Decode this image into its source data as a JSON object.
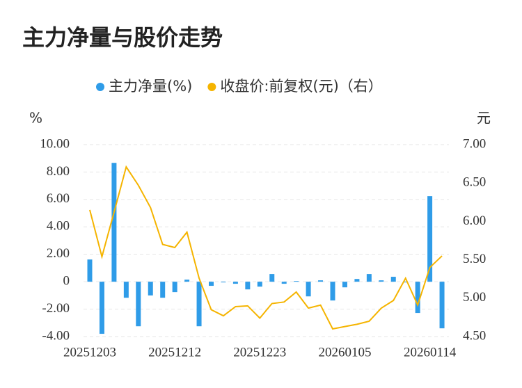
{
  "chart_data": {
    "type": "bar-line",
    "title": "主力净量与股价走势",
    "y_label": "%",
    "y2_label": "元",
    "categories": [
      "20251203",
      null,
      null,
      null,
      null,
      null,
      null,
      "20251212",
      null,
      null,
      null,
      null,
      null,
      null,
      "20251223",
      null,
      null,
      null,
      null,
      null,
      null,
      "20260105",
      null,
      null,
      null,
      null,
      null,
      null,
      "20260114",
      null
    ],
    "series": [
      {
        "name": "主力净量(%)",
        "type": "bar",
        "color": "#2f9ce8",
        "values": [
          1.62,
          -3.8,
          8.67,
          -1.17,
          -3.25,
          -1.0,
          -1.17,
          -0.76,
          0.15,
          -3.25,
          -0.3,
          -0.05,
          -0.15,
          -0.56,
          -0.36,
          0.56,
          -0.15,
          0.05,
          -1.07,
          0.1,
          -1.37,
          -0.41,
          0.2,
          0.56,
          0.1,
          0.36,
          -0.05,
          -2.28,
          6.24,
          -3.4
        ]
      },
      {
        "name": "收盘价:前复权(元)（右）",
        "type": "line",
        "axis": "y2",
        "color": "#f5b400",
        "values": [
          6.15,
          5.54,
          6.12,
          6.71,
          6.47,
          6.18,
          5.7,
          5.66,
          5.86,
          5.26,
          4.85,
          4.77,
          4.89,
          4.9,
          4.74,
          4.93,
          4.95,
          5.08,
          4.87,
          4.91,
          4.6,
          4.63,
          4.66,
          4.7,
          4.87,
          4.97,
          5.26,
          4.91,
          5.4,
          5.55
        ]
      }
    ],
    "ylim": [
      -4,
      10
    ],
    "yticks": [
      {
        "value": -4,
        "label": "-4.00"
      },
      {
        "value": -2,
        "label": "-2.00"
      },
      0,
      {
        "value": 2,
        "label": "2.00"
      },
      {
        "value": 4,
        "label": "4.00"
      },
      {
        "value": 6,
        "label": "6.00"
      },
      {
        "value": 8,
        "label": "8.00"
      },
      {
        "value": 10,
        "label": "10.00"
      }
    ],
    "y2lim": [
      4.5,
      7
    ],
    "y2ticks": [
      {
        "value": 4.5,
        "label": "4.50"
      },
      {
        "value": 5,
        "label": "5.00"
      },
      {
        "value": 5.5,
        "label": "5.50"
      },
      {
        "value": 6,
        "label": "6.00"
      },
      {
        "value": 6.5,
        "label": "6.50"
      },
      {
        "value": 7,
        "label": "7.00"
      }
    ],
    "grid": true
  }
}
